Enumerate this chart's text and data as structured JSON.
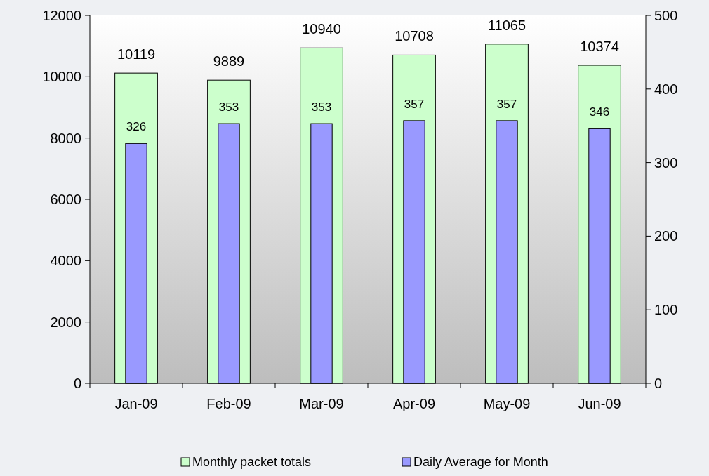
{
  "chart_data": {
    "type": "bar",
    "categories": [
      "Jan-09",
      "Feb-09",
      "Mar-09",
      "Apr-09",
      "May-09",
      "Jun-09"
    ],
    "series": [
      {
        "name": "Monthly packet totals",
        "color": "#ccffcc",
        "values": [
          10119,
          9889,
          10940,
          10708,
          11065,
          10374
        ]
      },
      {
        "name": "Daily Average for Month",
        "color": "#9999ff",
        "values": [
          326,
          353,
          353,
          357,
          357,
          346
        ],
        "axis": "y2"
      }
    ],
    "ylim": [
      0,
      12000
    ],
    "yticks": [
      0,
      2000,
      4000,
      6000,
      8000,
      10000,
      12000
    ],
    "y2lim": [
      0,
      500
    ],
    "y2ticks": [
      0,
      100,
      200,
      300,
      400,
      500
    ],
    "data_labels": true,
    "legend": "bottom",
    "grid": false
  }
}
